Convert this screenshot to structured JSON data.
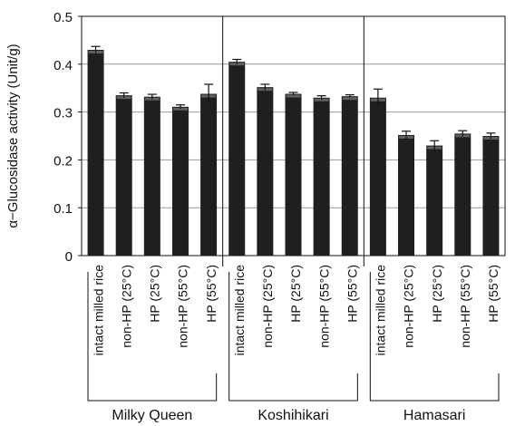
{
  "chart_data": {
    "type": "bar",
    "ylabel": "α−Glucosidase activity (Unit/g)",
    "ylim": [
      0,
      0.5
    ],
    "y_ticks": [
      "0",
      "0.1",
      "0.2",
      "0.3",
      "0.4",
      "0.5"
    ],
    "grid": true,
    "error_bars": true,
    "groups": [
      {
        "name": "Milky Queen",
        "bars": [
          {
            "label": "intact milled rice",
            "value": 0.43,
            "error": 0.007
          },
          {
            "label": "non-HP (25°C)",
            "value": 0.335,
            "error": 0.005
          },
          {
            "label": "HP (25°C)",
            "value": 0.332,
            "error": 0.005
          },
          {
            "label": "non-HP (55°C)",
            "value": 0.311,
            "error": 0.004
          },
          {
            "label": "HP (55°C)",
            "value": 0.338,
            "error": 0.02
          }
        ]
      },
      {
        "name": "Koshihikari",
        "bars": [
          {
            "label": "intact milled rice",
            "value": 0.405,
            "error": 0.005
          },
          {
            "label": "non-HP (25°C)",
            "value": 0.352,
            "error": 0.006
          },
          {
            "label": "HP (25°C)",
            "value": 0.338,
            "error": 0.003
          },
          {
            "label": "non-HP (55°C)",
            "value": 0.33,
            "error": 0.004
          },
          {
            "label": "HP (55°C)",
            "value": 0.333,
            "error": 0.003
          }
        ]
      },
      {
        "name": "Hamasari",
        "bars": [
          {
            "label": "intact milled rice",
            "value": 0.33,
            "error": 0.018
          },
          {
            "label": "non-HP (25°C)",
            "value": 0.252,
            "error": 0.008
          },
          {
            "label": "HP (25°C)",
            "value": 0.23,
            "error": 0.01
          },
          {
            "label": "non-HP (55°C)",
            "value": 0.255,
            "error": 0.006
          },
          {
            "label": "HP (55°C)",
            "value": 0.25,
            "error": 0.006
          }
        ]
      }
    ],
    "colors": {
      "bar": "#1f1f1f",
      "axis": "#111111",
      "grid": "#9a9a9a",
      "text": "#111111",
      "background": "#ffffff"
    }
  }
}
